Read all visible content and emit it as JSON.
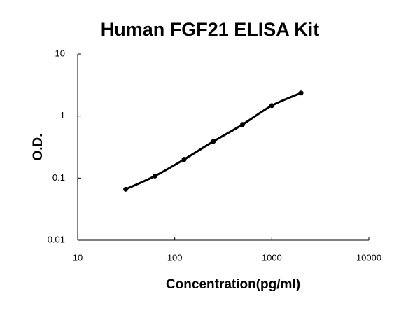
{
  "chart_data": {
    "type": "scatter",
    "title": "Human FGF21 ELISA Kit",
    "x_label": "Concentration(pg/ml)",
    "y_label": "O.D.",
    "x_scale": "log",
    "y_scale": "log",
    "xlim": [
      10,
      10000
    ],
    "xticks": [
      10,
      100,
      1000,
      10000
    ],
    "ylim": [
      0.01,
      10
    ],
    "yticks": [
      0.01,
      0.1,
      1,
      10
    ],
    "series": [
      {
        "color": "#000000",
        "x": [
          31.25,
          62.5,
          125,
          250,
          500,
          1000,
          2000
        ],
        "values": [
          0.066,
          0.108,
          0.2,
          0.39,
          0.73,
          1.47,
          2.35
        ]
      }
    ]
  }
}
